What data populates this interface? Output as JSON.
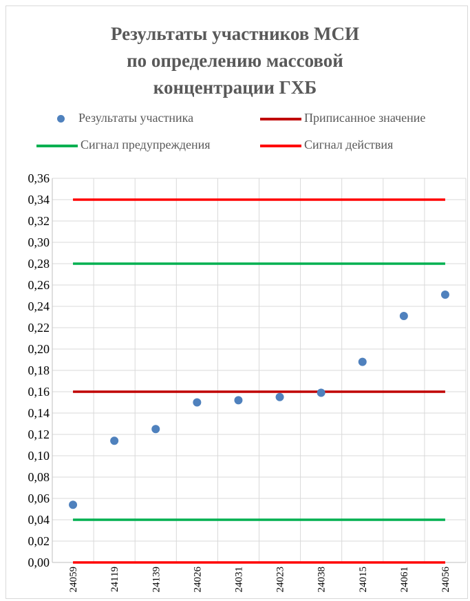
{
  "chart_data": {
    "type": "scatter",
    "title_lines": [
      "Результаты участников МСИ",
      "по определению массовой",
      "концентрации ГХБ"
    ],
    "categories": [
      "24059",
      "24119",
      "24139",
      "24026",
      "24031",
      "24023",
      "24038",
      "24015",
      "24061",
      "24056"
    ],
    "series": [
      {
        "name": "Результаты участника",
        "kind": "points",
        "color": "#4f81bd",
        "values": [
          0.054,
          0.114,
          0.125,
          0.15,
          0.152,
          0.155,
          0.159,
          0.188,
          0.231,
          0.251
        ]
      }
    ],
    "reference_lines": [
      {
        "name": "Приписанное значение",
        "color": "#c00000",
        "values": [
          0.16
        ]
      },
      {
        "name": "Сигнал предупреждения",
        "color": "#00b050",
        "values": [
          0.04,
          0.28
        ]
      },
      {
        "name": "Сигнал действия",
        "color": "#ff0000",
        "values": [
          0.0,
          0.34
        ]
      }
    ],
    "ylim": [
      0,
      0.36
    ],
    "y_step": 0.02,
    "y_tick_labels": [
      "0,00",
      "0,02",
      "0,04",
      "0,06",
      "0,08",
      "0,10",
      "0,12",
      "0,14",
      "0,16",
      "0,18",
      "0,20",
      "0,22",
      "0,24",
      "0,26",
      "0,28",
      "0,30",
      "0,32",
      "0,34",
      "0,36"
    ],
    "grid": true,
    "legend_position": "top"
  }
}
